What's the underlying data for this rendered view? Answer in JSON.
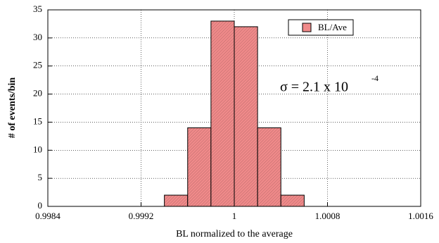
{
  "chart_data": {
    "type": "histogram",
    "x_label": "BL normalized to the average",
    "y_label": "# of events/bin",
    "bins": [
      0.9994,
      0.9996,
      0.9998,
      1,
      1.0002,
      1.0004,
      1.0006
    ],
    "values": [
      2,
      14,
      33,
      32,
      14,
      2
    ],
    "series_name": "BL/Ave",
    "color": "#f08a8a",
    "xlim": [
      0.9984,
      1.0016
    ],
    "xticks": [
      0.9984,
      0.9992,
      1,
      1.0008,
      1.0016
    ],
    "ylim": [
      0,
      35
    ],
    "yticks": [
      0,
      5,
      10,
      15,
      20,
      25,
      30,
      35
    ],
    "grid": true,
    "annotation": "σ = 2.1 x 10",
    "annotation_exponent": "-4"
  }
}
